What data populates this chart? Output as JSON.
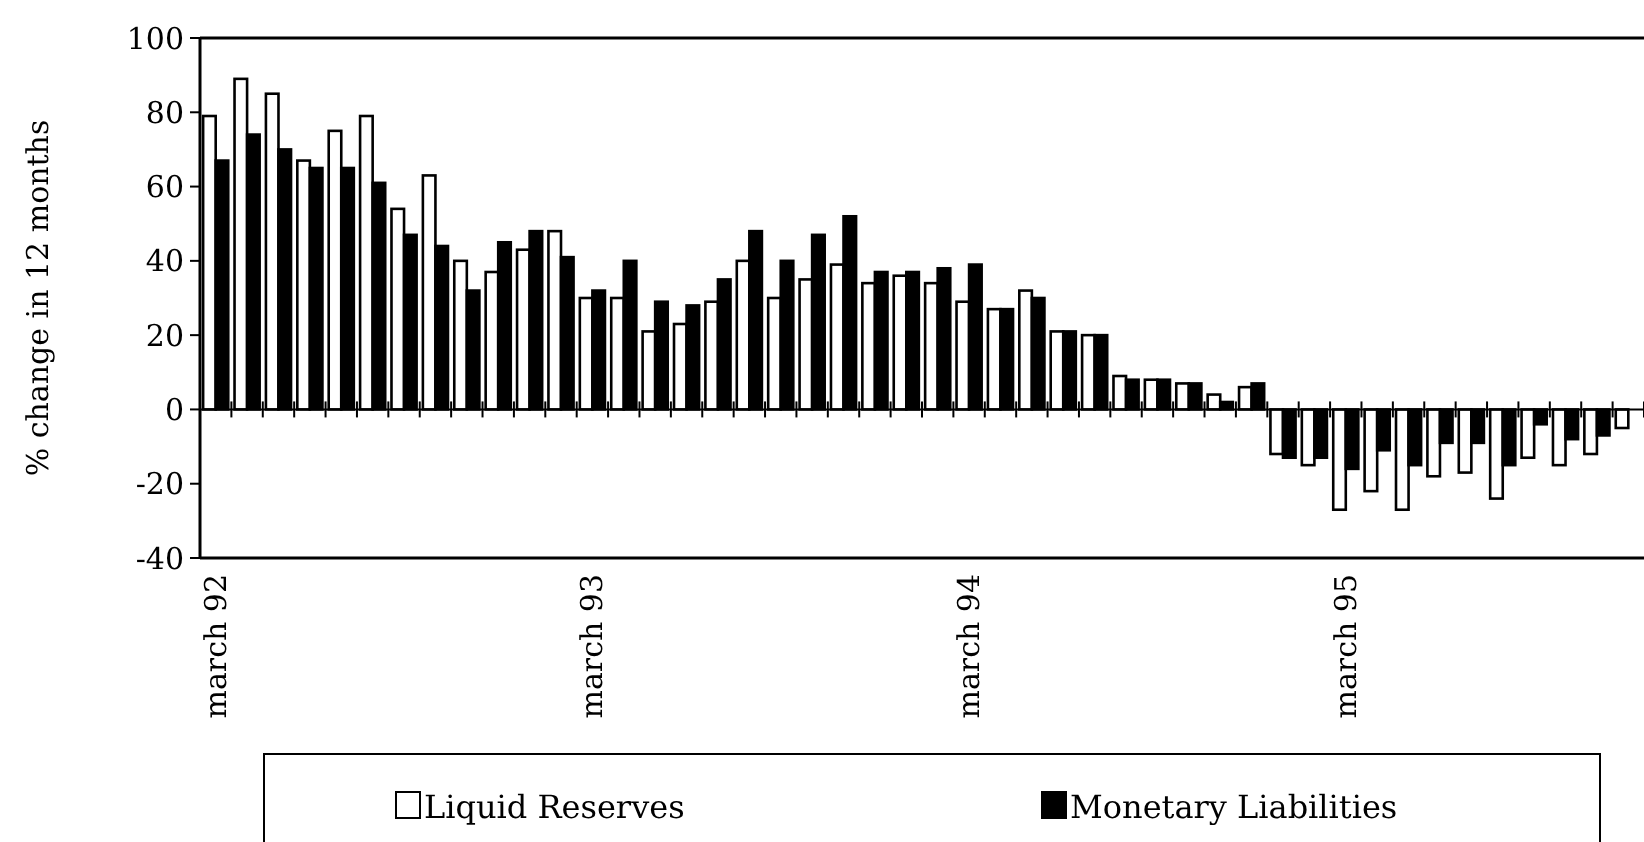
{
  "chart_data": {
    "type": "bar",
    "ylabel": "% change in 12 months",
    "legend": "bottom",
    "ylim": [
      -40,
      100
    ],
    "yticks": [
      -40,
      -20,
      0,
      20,
      40,
      60,
      80,
      100
    ],
    "categories": [
      "march 92",
      null,
      null,
      null,
      null,
      null,
      null,
      null,
      null,
      null,
      null,
      null,
      "march 93",
      null,
      null,
      null,
      null,
      null,
      null,
      null,
      null,
      null,
      null,
      null,
      "march 94",
      null,
      null,
      null,
      null,
      null,
      null,
      null,
      null,
      null,
      null,
      null,
      "march 95",
      null,
      null,
      null,
      null,
      null,
      null,
      null,
      null,
      null
    ],
    "series": [
      {
        "name": "Liquid Reserves",
        "color": "#ffffff",
        "values": [
          79,
          89,
          85,
          67,
          75,
          79,
          54,
          63,
          40,
          37,
          43,
          48,
          30,
          30,
          21,
          23,
          29,
          40,
          30,
          35,
          39,
          34,
          36,
          34,
          29,
          27,
          32,
          21,
          20,
          9,
          8,
          7,
          4,
          6,
          -12,
          -15,
          -27,
          -22,
          -27,
          -18,
          -17,
          -24,
          -13,
          -15,
          -12,
          -5
        ]
      },
      {
        "name": "Monetary Liabilities",
        "color": "#000000",
        "values": [
          67,
          74,
          70,
          65,
          65,
          61,
          47,
          44,
          32,
          45,
          48,
          41,
          32,
          40,
          29,
          28,
          35,
          48,
          40,
          47,
          52,
          37,
          37,
          38,
          39,
          27,
          30,
          21,
          20,
          8,
          8,
          7,
          2,
          7,
          -13,
          -13,
          -16,
          -11,
          -15,
          -9,
          -9,
          -15,
          -4,
          -8,
          -7,
          null
        ]
      }
    ]
  }
}
